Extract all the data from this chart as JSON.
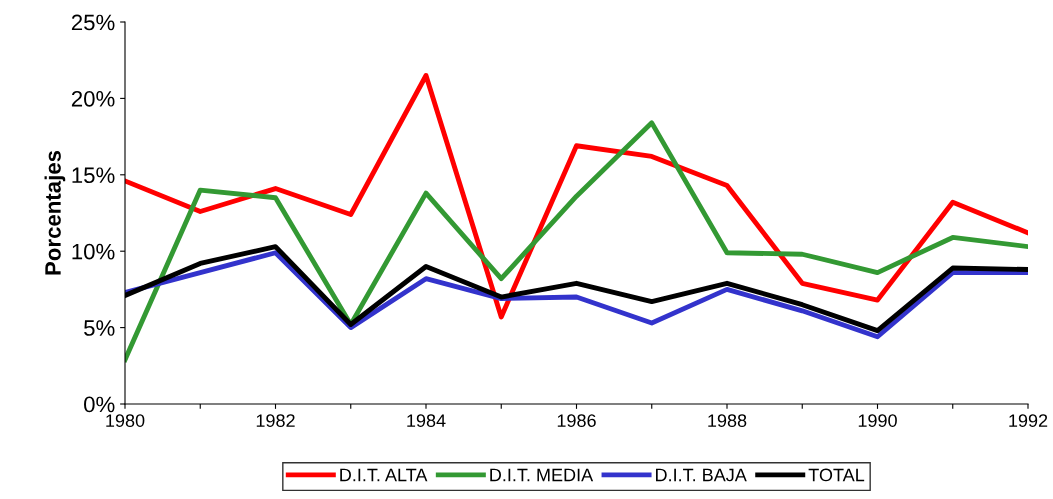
{
  "chart_data": {
    "type": "line",
    "ylabel": "Porcentajes",
    "x": [
      1980,
      1981,
      1982,
      1983,
      1984,
      1985,
      1986,
      1987,
      1988,
      1989,
      1990,
      1991,
      1992
    ],
    "series": [
      {
        "name": "D.I.T. ALTA",
        "color": "#ff0000",
        "values": [
          14.6,
          12.6,
          14.1,
          12.4,
          21.5,
          5.7,
          16.9,
          16.2,
          14.3,
          7.9,
          6.8,
          13.2,
          11.2
        ]
      },
      {
        "name": "D.I.T. MEDIA",
        "color": "#339933",
        "values": [
          2.9,
          14.0,
          13.5,
          5.2,
          13.8,
          8.2,
          13.6,
          18.4,
          9.9,
          9.8,
          8.6,
          10.9,
          10.3
        ]
      },
      {
        "name": "D.I.T. BAJA",
        "color": "#3333cc",
        "values": [
          7.3,
          8.6,
          9.9,
          5.0,
          8.2,
          6.9,
          7.0,
          5.3,
          7.5,
          6.1,
          4.4,
          8.6,
          8.6
        ]
      },
      {
        "name": "TOTAL",
        "color": "#000000",
        "values": [
          7.1,
          9.2,
          10.3,
          5.2,
          9.0,
          7.0,
          7.9,
          6.7,
          7.9,
          6.5,
          4.8,
          8.9,
          8.8
        ]
      }
    ],
    "xlim": [
      1980,
      1992
    ],
    "xticks": [
      1980,
      {
        "value": 1981,
        "label": null
      },
      1982,
      {
        "value": 1983,
        "label": null
      },
      1984,
      {
        "value": 1985,
        "label": null
      },
      1986,
      {
        "value": 1987,
        "label": null
      },
      1988,
      {
        "value": 1989,
        "label": null
      },
      1990,
      {
        "value": 1991,
        "label": null
      },
      1992
    ],
    "ylim": [
      0,
      25
    ],
    "yticks": [
      {
        "value": 0,
        "label": "0%"
      },
      {
        "value": 5,
        "label": "5%"
      },
      {
        "value": 10,
        "label": "10%"
      },
      {
        "value": 15,
        "label": "15%"
      },
      {
        "value": 20,
        "label": "20%"
      },
      {
        "value": 25,
        "label": "25%"
      }
    ],
    "grid": false,
    "legend": "bottom",
    "marker": "none",
    "line_style": "solid"
  }
}
